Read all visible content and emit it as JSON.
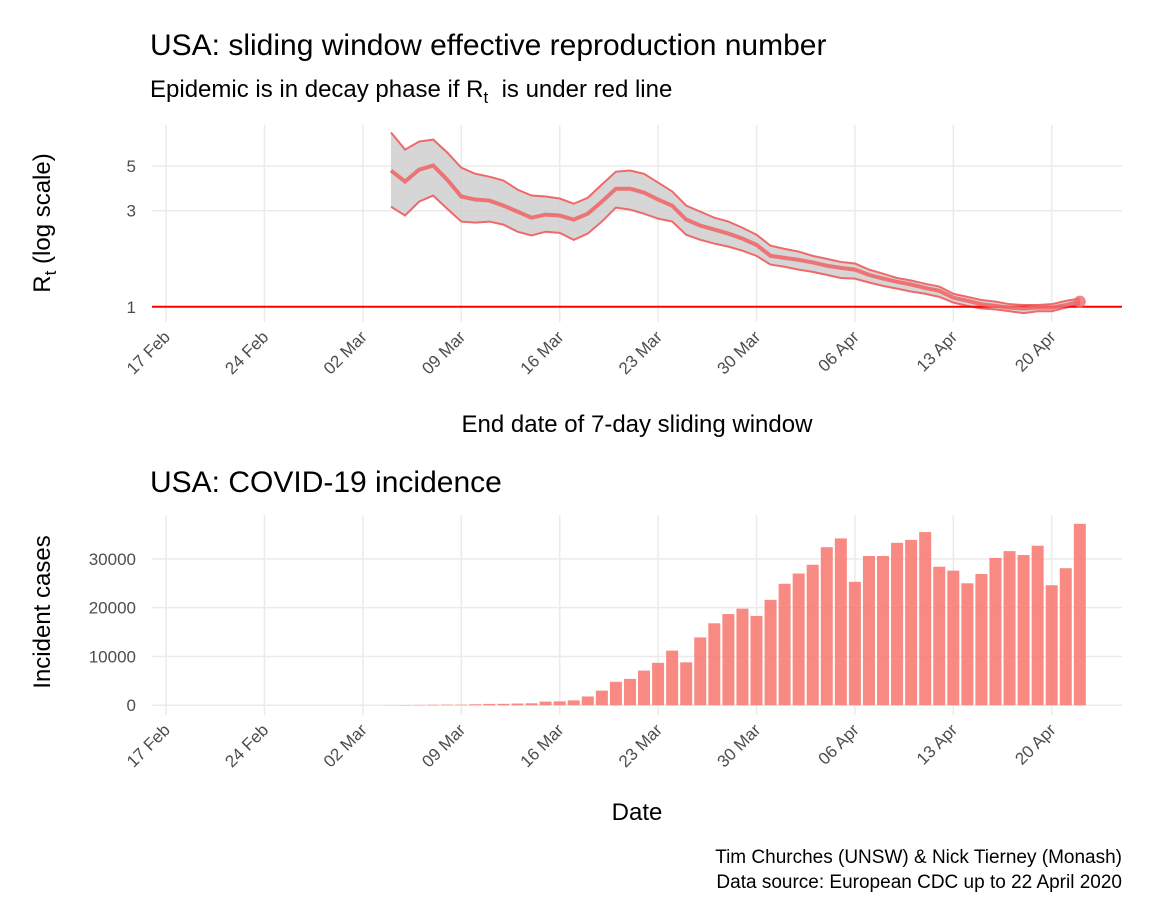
{
  "chart_data": [
    {
      "type": "line",
      "title": "USA: sliding window effective reproduction number",
      "subtitle": {
        "text": "Epidemic is in decay phase if R",
        "sub": "t",
        "after": "  is under red line"
      },
      "xlabel": "End date of 7-day sliding window",
      "ylabel": {
        "text": "R",
        "sub": "t",
        "after": " (log scale)"
      },
      "x": [
        "04 Mar",
        "05 Mar",
        "06 Mar",
        "07 Mar",
        "08 Mar",
        "09 Mar",
        "10 Mar",
        "11 Mar",
        "12 Mar",
        "13 Mar",
        "14 Mar",
        "15 Mar",
        "16 Mar",
        "17 Mar",
        "18 Mar",
        "19 Mar",
        "20 Mar",
        "21 Mar",
        "22 Mar",
        "23 Mar",
        "24 Mar",
        "25 Mar",
        "26 Mar",
        "27 Mar",
        "28 Mar",
        "29 Mar",
        "30 Mar",
        "31 Mar",
        "01 Apr",
        "02 Apr",
        "03 Apr",
        "04 Apr",
        "05 Apr",
        "06 Apr",
        "07 Apr",
        "08 Apr",
        "09 Apr",
        "10 Apr",
        "11 Apr",
        "12 Apr",
        "13 Apr",
        "14 Apr",
        "15 Apr",
        "16 Apr",
        "17 Apr",
        "18 Apr",
        "19 Apr",
        "20 Apr",
        "21 Apr",
        "22 Apr"
      ],
      "values": [
        4.75,
        4.19,
        4.8,
        5.03,
        4.28,
        3.53,
        3.41,
        3.37,
        3.18,
        2.97,
        2.77,
        2.87,
        2.84,
        2.71,
        2.9,
        3.33,
        3.86,
        3.86,
        3.69,
        3.41,
        3.18,
        2.71,
        2.53,
        2.42,
        2.31,
        2.18,
        2.03,
        1.79,
        1.75,
        1.71,
        1.66,
        1.6,
        1.56,
        1.53,
        1.44,
        1.38,
        1.33,
        1.29,
        1.24,
        1.2,
        1.11,
        1.07,
        1.03,
        1.01,
        0.99,
        0.98,
        0.99,
        0.99,
        1.02,
        1.06
      ],
      "upper": [
        7.34,
        6.04,
        6.62,
        6.77,
        5.84,
        4.91,
        4.58,
        4.43,
        4.24,
        3.82,
        3.57,
        3.53,
        3.45,
        3.25,
        3.48,
        4.05,
        4.69,
        4.75,
        4.58,
        4.14,
        3.74,
        3.18,
        2.97,
        2.77,
        2.65,
        2.47,
        2.28,
        2.01,
        1.94,
        1.88,
        1.79,
        1.73,
        1.67,
        1.64,
        1.53,
        1.46,
        1.39,
        1.35,
        1.3,
        1.26,
        1.16,
        1.12,
        1.08,
        1.06,
        1.03,
        1.02,
        1.02,
        1.03,
        1.07,
        1.1
      ],
      "lower": [
        3.14,
        2.84,
        3.33,
        3.57,
        3.07,
        2.65,
        2.62,
        2.65,
        2.56,
        2.36,
        2.26,
        2.36,
        2.33,
        2.15,
        2.31,
        2.65,
        3.11,
        3.04,
        2.9,
        2.74,
        2.65,
        2.28,
        2.15,
        2.06,
        1.99,
        1.9,
        1.79,
        1.62,
        1.58,
        1.53,
        1.49,
        1.44,
        1.39,
        1.38,
        1.32,
        1.27,
        1.23,
        1.19,
        1.16,
        1.12,
        1.05,
        1.01,
        0.98,
        0.97,
        0.95,
        0.93,
        0.95,
        0.95,
        0.99,
        1.03
      ],
      "color": "#f0696a",
      "ribbon_color": "#cfcfcf",
      "threshold": 1,
      "threshold_color": "#ff0000",
      "xlim": [
        "16 Feb",
        "25 Apr"
      ],
      "xticks": [
        "17 Feb",
        "24 Feb",
        "02 Mar",
        "09 Mar",
        "16 Mar",
        "23 Mar",
        "30 Mar",
        "06 Apr",
        "13 Apr",
        "20 Apr"
      ],
      "ylim": [
        0.84,
        8
      ],
      "yticks": [
        1,
        3,
        5
      ],
      "ylog": true,
      "grid": true
    },
    {
      "type": "bar",
      "title": "USA: COVID-19 incidence",
      "xlabel": "Date",
      "ylabel": "Incident cases",
      "x": [
        "04 Mar",
        "05 Mar",
        "06 Mar",
        "07 Mar",
        "08 Mar",
        "09 Mar",
        "10 Mar",
        "11 Mar",
        "12 Mar",
        "13 Mar",
        "14 Mar",
        "15 Mar",
        "16 Mar",
        "17 Mar",
        "18 Mar",
        "19 Mar",
        "20 Mar",
        "21 Mar",
        "22 Mar",
        "23 Mar",
        "24 Mar",
        "25 Mar",
        "26 Mar",
        "27 Mar",
        "28 Mar",
        "29 Mar",
        "30 Mar",
        "31 Mar",
        "01 Apr",
        "02 Apr",
        "03 Apr",
        "04 Apr",
        "05 Apr",
        "06 Apr",
        "07 Apr",
        "08 Apr",
        "09 Apr",
        "10 Apr",
        "11 Apr",
        "12 Apr",
        "13 Apr",
        "14 Apr",
        "15 Apr",
        "16 Apr",
        "17 Apr",
        "18 Apr",
        "19 Apr",
        "20 Apr",
        "21 Apr",
        "22 Apr"
      ],
      "values": [
        30,
        50,
        70,
        100,
        120,
        120,
        200,
        270,
        290,
        350,
        400,
        750,
        800,
        1000,
        1800,
        3000,
        4800,
        5400,
        7100,
        8700,
        11200,
        8800,
        13900,
        16800,
        18700,
        19800,
        18300,
        21600,
        24900,
        27000,
        28800,
        32400,
        34200,
        25300,
        30600,
        30600,
        33300,
        33900,
        35500,
        28400,
        27600,
        25000,
        26900,
        30200,
        31600,
        30800,
        32700,
        24600,
        28100,
        37200
      ],
      "color": "#f8766d",
      "xlim": [
        "16 Feb",
        "25 Apr"
      ],
      "xticks": [
        "17 Feb",
        "24 Feb",
        "02 Mar",
        "09 Mar",
        "16 Mar",
        "23 Mar",
        "30 Mar",
        "06 Apr",
        "13 Apr",
        "20 Apr"
      ],
      "ylim": [
        -2000,
        39000
      ],
      "yticks": [
        0,
        10000,
        20000,
        30000
      ],
      "grid": true
    }
  ],
  "caption": [
    "Tim Churches (UNSW) & Nick Tierney (Monash)",
    "Data source: European CDC up to 22 April 2020"
  ]
}
